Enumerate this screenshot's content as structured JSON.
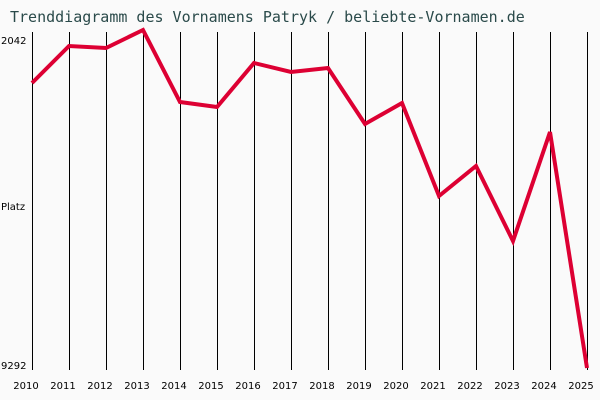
{
  "title": "Trenddiagramm des Vornamens Patryk / beliebte-Vornamen.de",
  "axis": {
    "y_top_label": "2042",
    "y_mid_label": "Platz",
    "y_bottom_label": "9292"
  },
  "colors": {
    "line": "#dd0033",
    "grid": "#000000",
    "background": "#fafafa",
    "title": "#2a4a4a"
  },
  "chart_data": {
    "type": "line",
    "title": "Trenddiagramm des Vornamens Patryk / beliebte-Vornamen.de",
    "xlabel": "",
    "ylabel": "Platz",
    "categories": [
      "2010",
      "2011",
      "2012",
      "2013",
      "2014",
      "2015",
      "2016",
      "2017",
      "2018",
      "2019",
      "2020",
      "2021",
      "2022",
      "2023",
      "2024",
      "2025"
    ],
    "series": [
      {
        "name": "Patryk",
        "values": [
          3179,
          2385,
          2428,
          2042,
          3586,
          3694,
          2750,
          2943,
          2857,
          4058,
          3608,
          5603,
          4959,
          6568,
          4230,
          9292
        ]
      }
    ],
    "ylim": [
      9292,
      2042
    ],
    "y_inverted": true,
    "grid": "vertical lines at each year",
    "legend": "none"
  }
}
